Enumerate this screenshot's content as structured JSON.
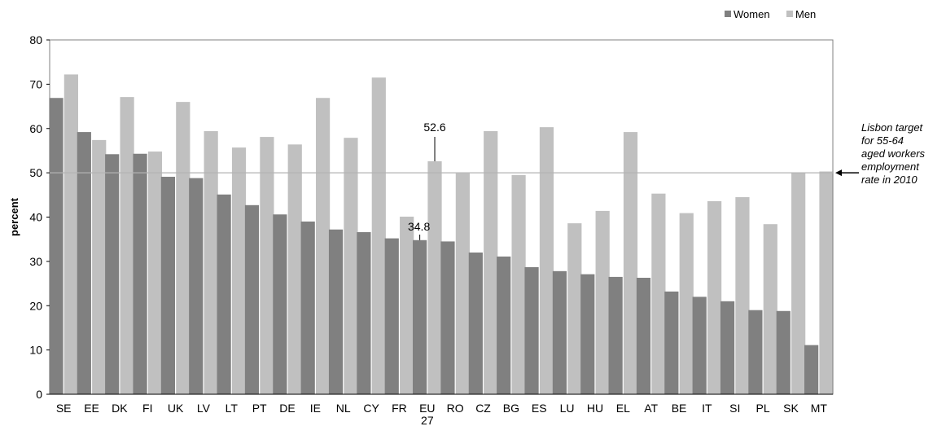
{
  "chart_data": {
    "type": "bar",
    "categories": [
      "SE",
      "EE",
      "DK",
      "FI",
      "UK",
      "LV",
      "LT",
      "PT",
      "DE",
      "IE",
      "NL",
      "CY",
      "FR",
      "EU\n27",
      "RO",
      "CZ",
      "BG",
      "ES",
      "LU",
      "HU",
      "EL",
      "AT",
      "BE",
      "IT",
      "SI",
      "PL",
      "SK",
      "MT"
    ],
    "series": [
      {
        "name": "Women",
        "color": "#808080",
        "values": [
          66.9,
          59.2,
          54.2,
          54.3,
          49.1,
          48.8,
          45.1,
          42.7,
          40.6,
          39.0,
          37.2,
          36.6,
          35.2,
          34.8,
          34.5,
          32.0,
          31.1,
          28.7,
          27.8,
          27.1,
          26.5,
          26.3,
          23.2,
          22.0,
          21.0,
          19.0,
          18.8,
          11.1
        ]
      },
      {
        "name": "Men",
        "color": "#c0c0c0",
        "values": [
          72.2,
          57.4,
          67.1,
          54.8,
          66.0,
          59.4,
          55.7,
          58.1,
          56.4,
          66.9,
          57.9,
          71.5,
          40.1,
          52.6,
          49.9,
          59.4,
          49.5,
          60.3,
          38.6,
          41.4,
          59.2,
          45.3,
          40.9,
          43.6,
          44.5,
          38.4,
          50.0,
          50.3
        ]
      }
    ],
    "data_labels": {
      "men": "52.6",
      "women": "34.8"
    },
    "xlabel": "",
    "ylabel": "percent",
    "ylim": [
      0,
      80
    ],
    "yticks": [
      0,
      10,
      20,
      30,
      40,
      50,
      60,
      70,
      80
    ],
    "reference_line": {
      "value": 50,
      "color": "#b3b3b3"
    },
    "annotation_lines": [
      "Lisbon target",
      "for  55-64",
      "aged workers",
      "employment",
      "rate in 2010"
    ],
    "legend": {
      "position": "top-right",
      "entries": [
        "Women",
        "Men"
      ]
    },
    "grid": false
  }
}
